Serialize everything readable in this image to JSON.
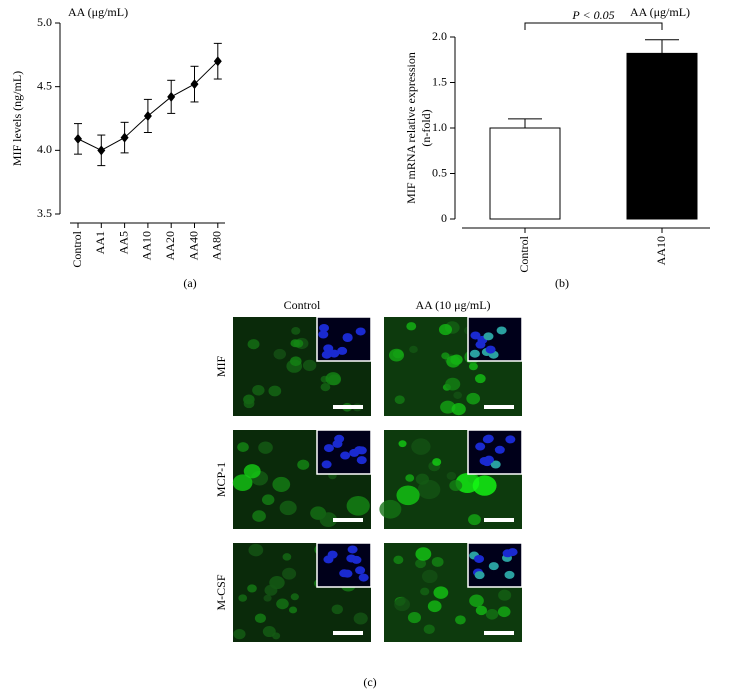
{
  "chart_data": [
    {
      "type": "line",
      "panel_label": "(a)",
      "annotation": "AA (μg/mL)",
      "ylabel": [
        "MIF levels (ng/mL)"
      ],
      "categories": [
        "Control",
        "AA1",
        "AA5",
        "AA10",
        "AA20",
        "AA40",
        "AA80"
      ],
      "values": [
        4.09,
        4.0,
        4.1,
        4.27,
        4.42,
        4.52,
        4.7
      ],
      "errors": [
        0.12,
        0.12,
        0.12,
        0.13,
        0.13,
        0.14,
        0.14
      ],
      "color": "#000000",
      "ylim": [
        3.5,
        5.0
      ],
      "yticks": [
        3.5,
        {
          "value": 4,
          "label": "4.0"
        },
        4.5,
        {
          "value": 5,
          "label": "5.0"
        }
      ]
    },
    {
      "type": "bar",
      "panel_label": "(b)",
      "annotation": "AA (μg/mL)",
      "significance": "P < 0.05",
      "ylabel": [
        "MIF mRNA relative expression",
        "(n-fold)"
      ],
      "categories": [
        "Control",
        "AA10"
      ],
      "values": [
        1.0,
        1.82
      ],
      "errors": [
        0.1,
        0.15
      ],
      "colors": [
        "#ffffff",
        "#000000"
      ],
      "ylim": [
        0,
        2.0
      ],
      "yticks": [
        0,
        0.5,
        {
          "value": 1,
          "label": "1.0"
        },
        1.5,
        {
          "value": 2,
          "label": "2.0"
        }
      ]
    }
  ],
  "image_grid": {
    "panel_label": "(c)",
    "columns": [
      "Control",
      "AA (10 μg/mL)"
    ],
    "rows": [
      "MIF",
      "MCP-1",
      "M-CSF"
    ]
  }
}
